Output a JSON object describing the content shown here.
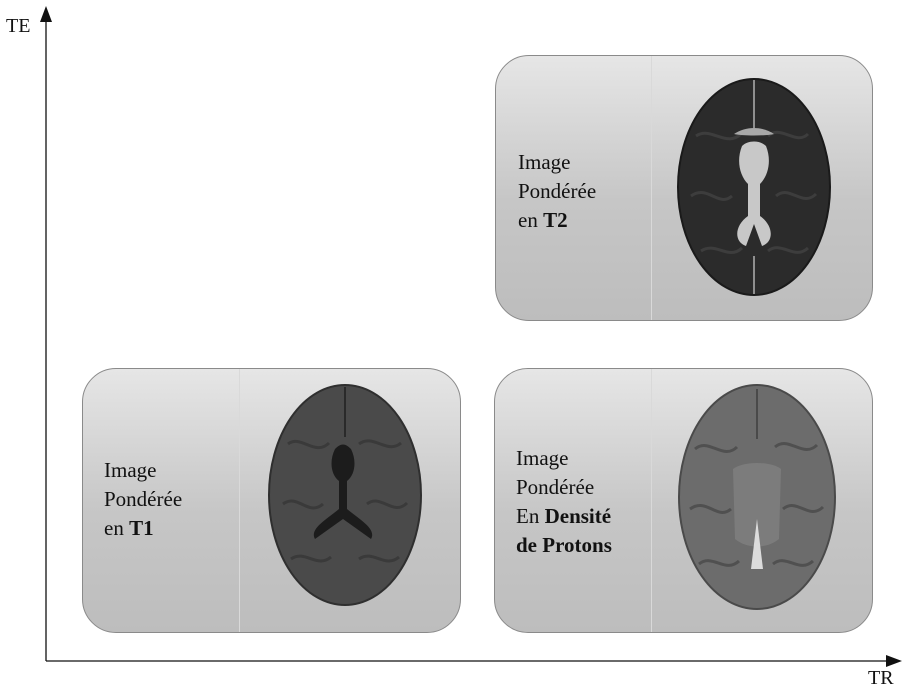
{
  "axes": {
    "y_label": "TE",
    "x_label": "TR"
  },
  "panels": {
    "t2": {
      "line1": "Image",
      "line2": "Pondérée",
      "line3_prefix": "en ",
      "line3_bold": "T2"
    },
    "t1": {
      "line1": "Image",
      "line2": "Pondérée",
      "line3_prefix": "en ",
      "line3_bold": "T1"
    },
    "pd": {
      "line1": "Image",
      "line2": "Pondérée",
      "line3_prefix": "En ",
      "line3_bold": "Densité",
      "line4_bold": "de Protons"
    }
  },
  "colors": {
    "t2_brain": "#2a2a2a",
    "t2_csf": "#c8c8c8",
    "t1_brain": "#4a4a4a",
    "t1_csf": "#1c1c1c",
    "pd_brain": "#6c6c6c",
    "pd_csf": "#dcdcdc"
  }
}
